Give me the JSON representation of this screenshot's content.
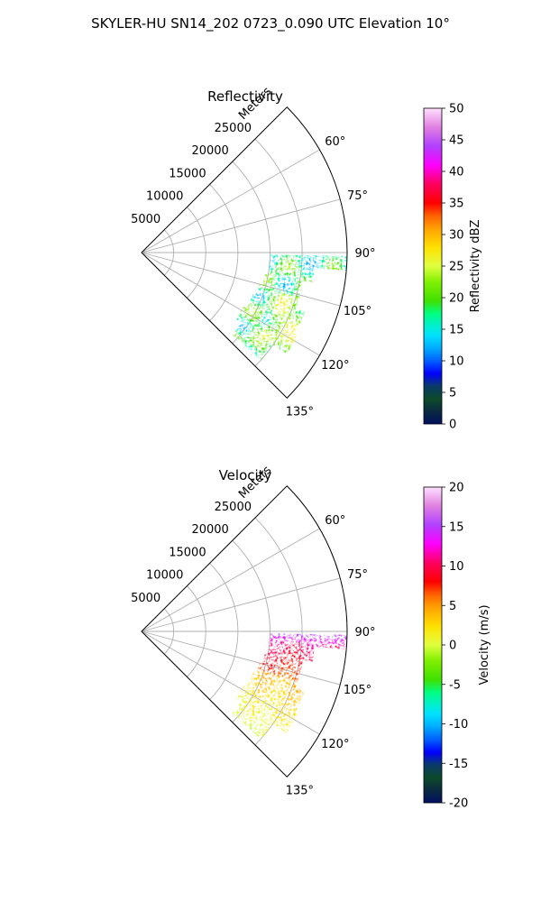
{
  "figure": {
    "suptitle": "SKYLER-HU  SN14_202  0723_0.090 UTC Elevation 10°"
  },
  "chart_data": [
    {
      "type": "heatmap",
      "subtype": "polar-sector (PPI)",
      "title": "Reflectivity",
      "r_axis_label": "Meters",
      "r_ticks": [
        "5000",
        "10000",
        "15000",
        "20000",
        "25000"
      ],
      "r_lim": [
        0,
        32000
      ],
      "theta_ticks": [
        "60°",
        "75°",
        "90°",
        "105°",
        "120°",
        "135°"
      ],
      "theta_lim_deg": [
        45,
        135
      ],
      "grid": true,
      "colorbar": {
        "label": "Reflectivity dBZ",
        "min": 0,
        "max": 50,
        "ticks": [
          "0",
          "5",
          "10",
          "15",
          "20",
          "25",
          "30",
          "35",
          "40",
          "45",
          "50"
        ]
      },
      "echo_summary": "Echo region from about 20 to 32 km range, azimuth about 92°–130°; values mostly 15–25 dBZ"
    },
    {
      "type": "heatmap",
      "subtype": "polar-sector (PPI)",
      "title": "Velocity",
      "r_axis_label": "Meters",
      "r_ticks": [
        "5000",
        "10000",
        "15000",
        "20000",
        "25000"
      ],
      "r_lim": [
        0,
        32000
      ],
      "theta_ticks": [
        "60°",
        "75°",
        "90°",
        "105°",
        "120°",
        "135°"
      ],
      "theta_lim_deg": [
        45,
        135
      ],
      "grid": true,
      "colorbar": {
        "label": "Velocity (m/s)",
        "min": -20,
        "max": 20,
        "ticks": [
          "-20",
          "-15",
          "-10",
          "-5",
          "0",
          "5",
          "10",
          "15",
          "20"
        ]
      },
      "echo_summary": "Same echo region; about 15 m/s near 92°, 8–11 m/s at 95°–110°, 0–5 m/s at 110°–130°"
    }
  ],
  "colors": {
    "grid": "#b0b0b0",
    "axes": "#000000"
  }
}
